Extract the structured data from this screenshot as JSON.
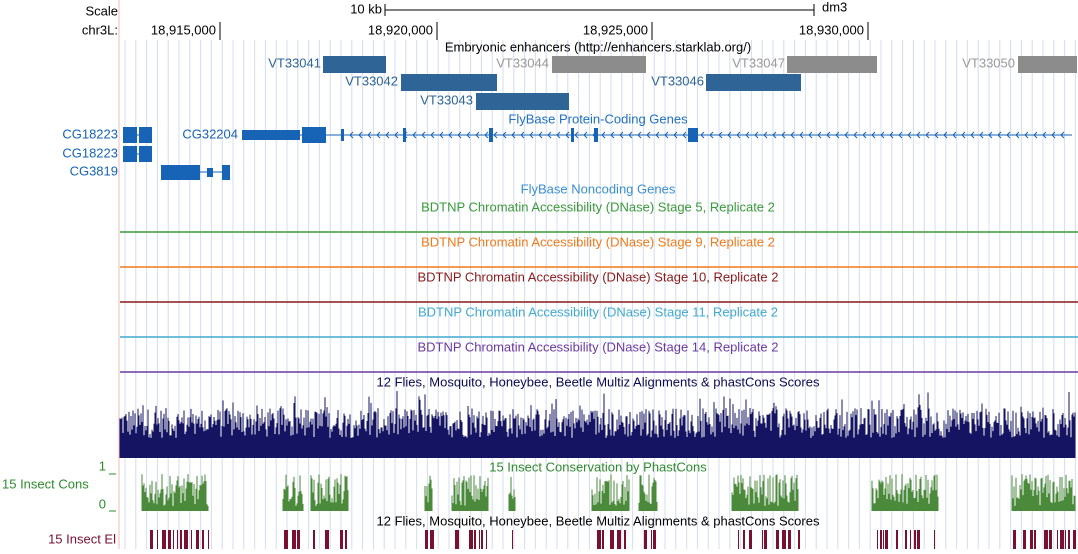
{
  "header": {
    "scale_label": "Scale",
    "scale_bar_label": "10 kb",
    "assembly": "dm3",
    "chrom_label": "chr3L:",
    "positions": [
      "18,915,000",
      "18,920,000",
      "18,925,000",
      "18,930,000"
    ]
  },
  "enhancers": {
    "title": "Embryonic enhancers (http://enhancers.starklab.org/)",
    "items": [
      "VT33041",
      "VT33044",
      "VT33047",
      "VT33050",
      "VT33042",
      "VT33046",
      "VT33043"
    ]
  },
  "genes": {
    "title": "FlyBase Protein-Coding Genes",
    "items": [
      "CG18223",
      "CG18223",
      "CG32204",
      "CG3819"
    ]
  },
  "noncoding": {
    "title": "FlyBase Noncoding Genes"
  },
  "dnase": {
    "titles": [
      "BDTNP Chromatin Accessibility (DNase) Stage 5, Replicate 2",
      "BDTNP Chromatin Accessibility (DNase) Stage 9, Replicate 2",
      "BDTNP Chromatin Accessibility (DNase) Stage 10, Replicate 2",
      "BDTNP Chromatin Accessibility (DNase) Stage 11, Replicate 2",
      "BDTNP Chromatin Accessibility (DNase) Stage 14, Replicate 2"
    ]
  },
  "multiz": {
    "title": "12 Flies, Mosquito, Honeybee, Beetle Multiz Alignments & phastCons Scores"
  },
  "phastcons": {
    "title": "15 Insect Conservation by PhastCons",
    "side_label": "15 Insect Cons",
    "axis_top": "1",
    "axis_bottom": "0"
  },
  "elements": {
    "title": "12 Flies, Mosquito, Honeybee, Beetle Multiz Alignments & phastCons Scores",
    "side_label": "15 Insect El"
  }
}
